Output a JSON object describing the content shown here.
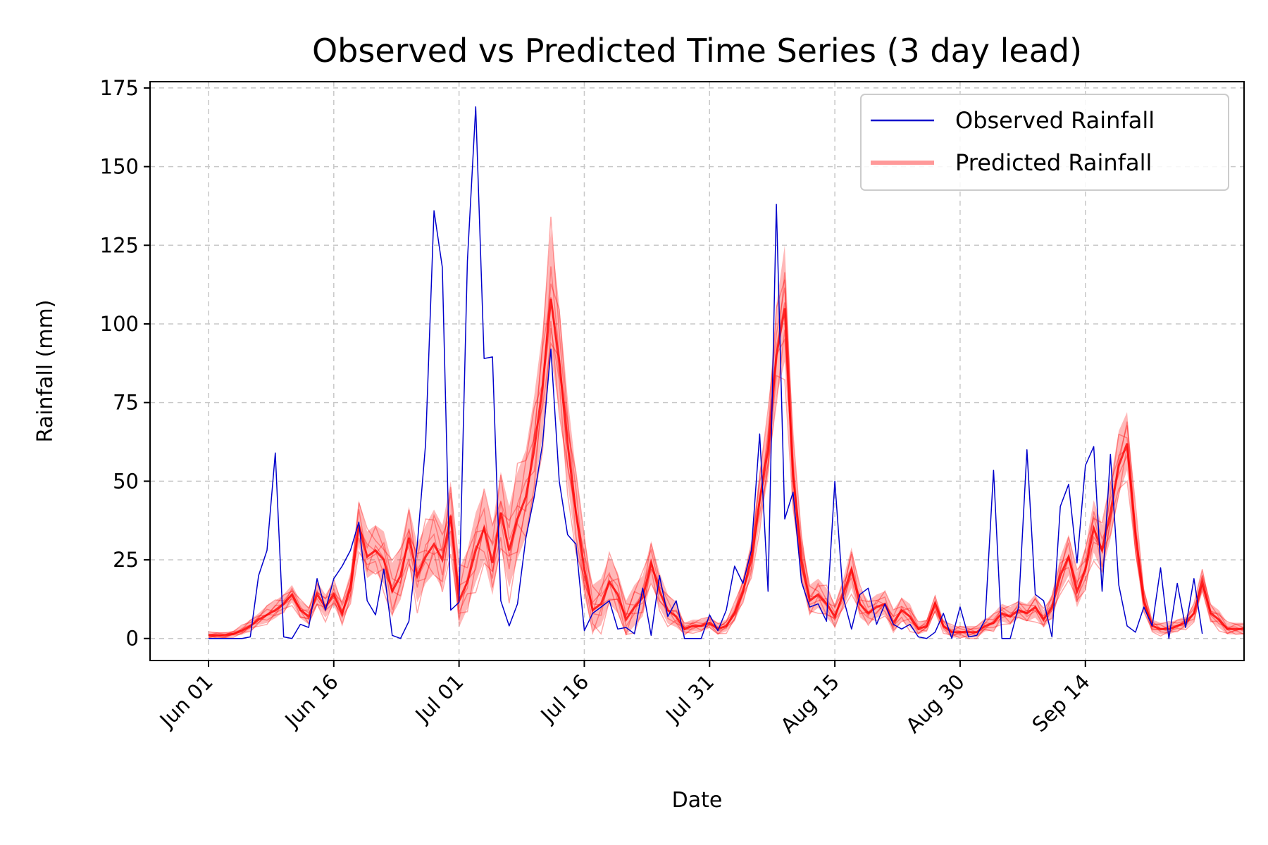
{
  "chart_data": {
    "type": "line",
    "title": "Observed vs Predicted Time Series (3 day lead)",
    "xlabel": "Date",
    "ylabel": "Rainfall (mm)",
    "x_start": "2024-06-01",
    "x_ticks": [
      "Jun 01",
      "Jun 16",
      "Jul 01",
      "Jul 16",
      "Jul 31",
      "Aug 15",
      "Aug 30",
      "Sep 14"
    ],
    "xlim": [
      "2024-05-25",
      "2024-10-03"
    ],
    "ylim": [
      -7,
      177
    ],
    "y_ticks": [
      0,
      25,
      50,
      75,
      100,
      125,
      150,
      175
    ],
    "grid": true,
    "legend_position": "top-right",
    "series": [
      {
        "name": "Observed Rainfall",
        "color": "#0000cc",
        "values": [
          0,
          0,
          0,
          0,
          0,
          0.5,
          20,
          28,
          59,
          0.5,
          0,
          4.5,
          3.5,
          19,
          9,
          19,
          23,
          28,
          37,
          12,
          7.5,
          22,
          1,
          0,
          5.5,
          30,
          62,
          136,
          118,
          9,
          11.5,
          120,
          169,
          89,
          89.5,
          12,
          4,
          11,
          32,
          45,
          62,
          92,
          50,
          33,
          30,
          2.5,
          8,
          10,
          12,
          3,
          3.5,
          1.5,
          16,
          1,
          20,
          7,
          12,
          0,
          0,
          0,
          7.5,
          2.5,
          9,
          23,
          17.5,
          28,
          65,
          15,
          138,
          38,
          46.5,
          18,
          10,
          11,
          5.5,
          50,
          13,
          3,
          14,
          16,
          4.5,
          11,
          4.5,
          3,
          4.5,
          0.5,
          0,
          2,
          8,
          0,
          10,
          0.5,
          1,
          6,
          53.5,
          0,
          0,
          10,
          60,
          14,
          12,
          0.5,
          42,
          49,
          24,
          55,
          61,
          15,
          58.5,
          17,
          4,
          2,
          10,
          4,
          22.5,
          0,
          17.5,
          3.5,
          19,
          1.5
        ]
      },
      {
        "name": "Predicted Rainfall",
        "color": "#ff0000",
        "values": [
          1,
          1,
          1,
          1.5,
          2.5,
          4,
          6,
          7.5,
          9,
          11,
          14,
          9,
          7,
          14,
          10,
          14,
          8,
          16,
          36,
          26,
          28,
          25,
          15,
          20,
          32,
          20,
          26,
          30,
          25,
          39,
          12,
          18,
          28,
          35,
          24,
          40,
          28,
          38,
          45,
          60,
          80,
          108,
          88,
          62,
          40,
          22,
          9,
          11,
          18,
          14,
          6,
          10,
          13,
          24,
          15,
          9,
          7,
          3,
          4,
          4,
          5,
          3,
          4,
          8,
          15,
          25,
          44,
          60,
          90,
          105,
          52,
          25,
          12,
          14,
          11,
          7,
          14,
          22,
          11,
          8,
          10,
          11,
          5,
          9,
          7,
          3,
          4,
          11,
          4,
          2,
          2,
          2,
          2,
          4,
          5,
          8,
          7,
          9,
          8,
          10,
          6,
          10,
          20,
          26,
          15,
          22,
          35,
          28,
          40,
          55,
          62,
          33,
          12,
          4,
          3,
          3,
          4,
          5,
          8,
          18,
          8,
          6,
          3,
          3,
          3
        ],
        "spread": [
          1,
          1,
          1,
          1,
          1.5,
          2,
          2,
          3,
          3,
          3,
          3,
          3,
          3,
          4,
          4,
          4,
          4,
          5,
          8,
          8,
          8,
          9,
          9,
          9,
          10,
          10,
          10,
          11,
          11,
          11,
          10,
          10,
          12,
          12,
          12,
          13,
          14,
          15,
          15,
          17,
          18,
          22,
          18,
          15,
          13,
          10,
          8,
          8,
          8,
          7,
          6,
          7,
          7,
          7,
          6,
          5,
          4,
          2,
          2,
          2,
          2,
          2,
          2,
          3,
          4,
          6,
          9,
          11,
          16,
          20,
          12,
          8,
          5,
          5,
          5,
          4,
          5,
          7,
          5,
          4,
          4,
          4,
          4,
          4,
          4,
          2,
          2,
          3,
          2,
          2,
          2,
          2,
          2,
          2,
          3,
          3,
          3,
          3,
          3,
          4,
          3,
          4,
          6,
          7,
          6,
          7,
          9,
          8,
          10,
          11,
          10,
          8,
          4,
          2,
          2,
          2,
          2,
          2,
          3,
          4,
          3,
          3,
          2,
          2,
          2
        ]
      }
    ]
  }
}
